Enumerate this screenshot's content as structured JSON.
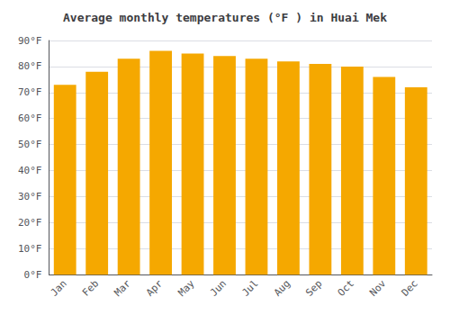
{
  "chart_data": {
    "type": "bar",
    "title": "Average monthly temperatures (°F ) in Huai Mek",
    "categories": [
      "Jan",
      "Feb",
      "Mar",
      "Apr",
      "May",
      "Jun",
      "Jul",
      "Aug",
      "Sep",
      "Oct",
      "Nov",
      "Dec"
    ],
    "values": [
      73,
      78,
      83,
      86,
      85,
      84,
      83,
      82,
      81,
      80,
      76,
      72
    ],
    "color": "#F5A800",
    "ylim": [
      0,
      90
    ],
    "yticks": [
      {
        "value": 0,
        "label": "0°F"
      },
      {
        "value": 10,
        "label": "10°F"
      },
      {
        "value": 20,
        "label": "20°F"
      },
      {
        "value": 30,
        "label": "30°F"
      },
      {
        "value": 40,
        "label": "40°F"
      },
      {
        "value": 50,
        "label": "50°F"
      },
      {
        "value": 60,
        "label": "60°F"
      },
      {
        "value": 70,
        "label": "70°F"
      },
      {
        "value": 80,
        "label": "80°F"
      },
      {
        "value": 90,
        "label": "90°F"
      }
    ],
    "grid": true
  }
}
